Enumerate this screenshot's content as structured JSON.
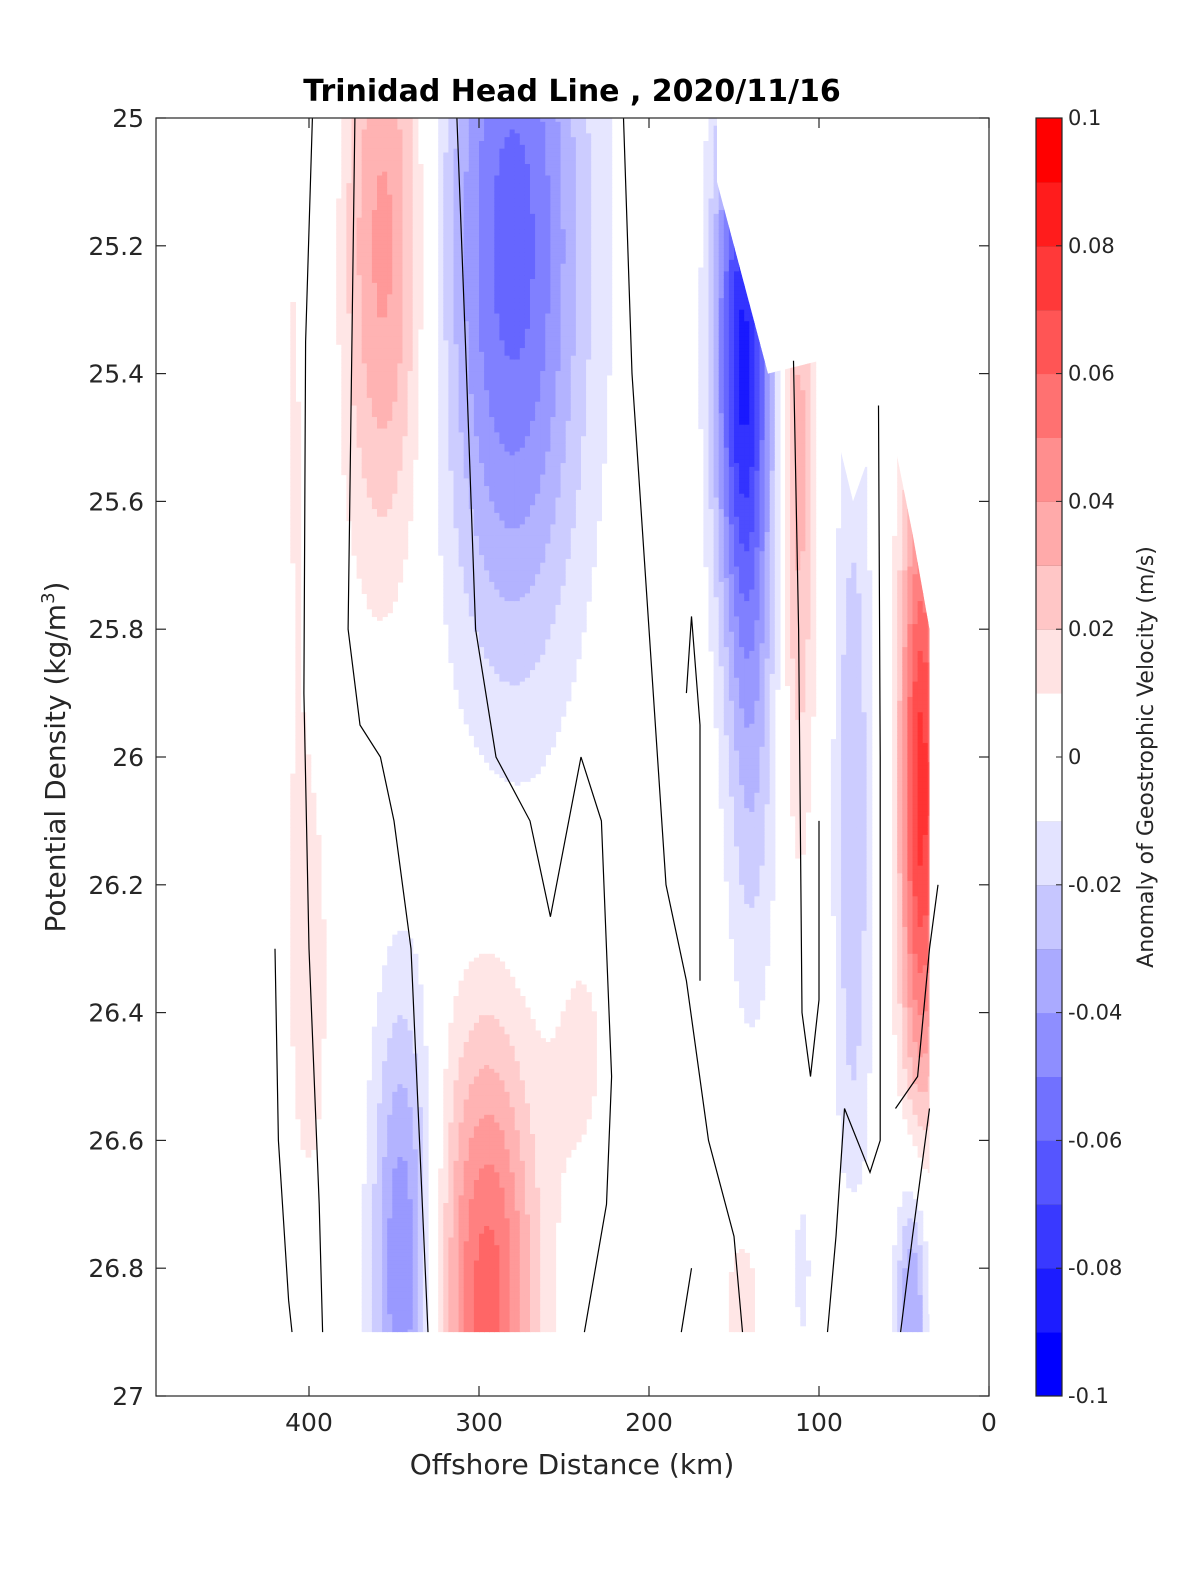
{
  "chart_data": {
    "type": "heatmap",
    "title": "Trinidad Head Line , 2020/11/16",
    "xlabel": "Offshore Distance (km)",
    "ylabel_main": "Potential Density (kg/m",
    "ylabel_sup": "3",
    "ylabel_close": ")",
    "colorbar_label": "Anomaly of Geostrophic Velocity (m/s)",
    "xlim": [
      490,
      0
    ],
    "ylim": [
      25,
      27
    ],
    "y_reversed": true,
    "x_ticks": [
      {
        "value": 400,
        "label": "400"
      },
      {
        "value": 300,
        "label": "300"
      },
      {
        "value": 200,
        "label": "200"
      },
      {
        "value": 100,
        "label": "100"
      },
      {
        "value": 0,
        "label": "0"
      }
    ],
    "y_ticks": [
      {
        "value": 25,
        "label": "25"
      },
      {
        "value": 25.2,
        "label": "25.2"
      },
      {
        "value": 25.4,
        "label": "25.4"
      },
      {
        "value": 25.6,
        "label": "25.6"
      },
      {
        "value": 25.8,
        "label": "25.8"
      },
      {
        "value": 26,
        "label": "26"
      },
      {
        "value": 26.2,
        "label": "26.2"
      },
      {
        "value": 26.4,
        "label": "26.4"
      },
      {
        "value": 26.6,
        "label": "26.6"
      },
      {
        "value": 26.8,
        "label": "26.8"
      },
      {
        "value": 27,
        "label": "27"
      }
    ],
    "colorbar": {
      "range": [
        -0.1,
        0.1
      ],
      "levels": [
        -0.1,
        -0.09,
        -0.08,
        -0.07,
        -0.06,
        -0.05,
        -0.04,
        -0.03,
        -0.02,
        -0.01,
        0,
        0.01,
        0.02,
        0.03,
        0.04,
        0.05,
        0.06,
        0.07,
        0.08,
        0.09,
        0.1
      ],
      "ticks": [
        {
          "value": 0.1,
          "label": "0.1"
        },
        {
          "value": 0.08,
          "label": "0.08"
        },
        {
          "value": 0.06,
          "label": "0.06"
        },
        {
          "value": 0.04,
          "label": "0.04"
        },
        {
          "value": 0.02,
          "label": "0.02"
        },
        {
          "value": 0,
          "label": "0"
        },
        {
          "value": -0.02,
          "label": "-0.02"
        },
        {
          "value": -0.04,
          "label": "-0.04"
        },
        {
          "value": -0.06,
          "label": "-0.06"
        },
        {
          "value": -0.08,
          "label": "-0.08"
        },
        {
          "value": -0.1,
          "label": "-0.1"
        }
      ],
      "negative_color": "#0000ff",
      "positive_color": "#ff0000",
      "zero_color": "#ffffff"
    },
    "data_extent": {
      "x": [
        420,
        35
      ],
      "y_top": 25,
      "y_bottom": 26.9,
      "valid_top_by_x": [
        [
          420,
          25
        ],
        [
          160,
          25
        ],
        [
          160,
          25.1
        ],
        [
          130,
          25.4
        ],
        [
          100,
          25.38
        ],
        [
          80,
          25.6
        ],
        [
          60,
          25.45
        ],
        [
          45,
          25.65
        ],
        [
          35,
          25.8
        ]
      ]
    },
    "velocity_features": [
      {
        "x": 408,
        "y": 25.35,
        "sx": 6,
        "sy": 0.5,
        "v": 0.012
      },
      {
        "x": 395,
        "y": 25.15,
        "sx": 8,
        "sy": 0.25,
        "v": -0.012
      },
      {
        "x": 355,
        "y": 25.2,
        "sx": 18,
        "sy": 0.35,
        "v": 0.045
      },
      {
        "x": 280,
        "y": 25.2,
        "sx": 30,
        "sy": 0.45,
        "v": -0.065
      },
      {
        "x": 145,
        "y": 25.35,
        "sx": 12,
        "sy": 0.3,
        "v": -0.085
      },
      {
        "x": 140,
        "y": 25.9,
        "sx": 11,
        "sy": 0.35,
        "v": -0.03
      },
      {
        "x": 112,
        "y": 25.55,
        "sx": 7,
        "sy": 0.4,
        "v": 0.035
      },
      {
        "x": 80,
        "y": 26.1,
        "sx": 8,
        "sy": 0.45,
        "v": -0.03
      },
      {
        "x": 40,
        "y": 26.05,
        "sx": 9,
        "sy": 0.35,
        "v": 0.085
      },
      {
        "x": 400,
        "y": 26.35,
        "sx": 10,
        "sy": 0.3,
        "v": 0.015
      },
      {
        "x": 345,
        "y": 26.8,
        "sx": 13,
        "sy": 0.3,
        "v": -0.05
      },
      {
        "x": 295,
        "y": 26.85,
        "sx": 20,
        "sy": 0.3,
        "v": 0.065
      },
      {
        "x": 240,
        "y": 26.45,
        "sx": 16,
        "sy": 0.2,
        "v": 0.012
      },
      {
        "x": 145,
        "y": 26.85,
        "sx": 10,
        "sy": 0.12,
        "v": 0.014
      },
      {
        "x": 110,
        "y": 26.8,
        "sx": 4,
        "sy": 0.1,
        "v": -0.015
      },
      {
        "x": 80,
        "y": 26.85,
        "sx": 6,
        "sy": 0.1,
        "v": 0.013
      },
      {
        "x": 45,
        "y": 26.85,
        "sx": 7,
        "sy": 0.15,
        "v": -0.045
      }
    ],
    "zero_contours": [
      [
        [
          398,
          25
        ],
        [
          402,
          25.35
        ],
        [
          403,
          25.9
        ],
        [
          400,
          26.3
        ],
        [
          394,
          26.7
        ],
        [
          392,
          26.9
        ]
      ],
      [
        [
          373,
          25
        ],
        [
          375,
          25.4
        ],
        [
          377,
          25.8
        ],
        [
          370,
          25.95
        ],
        [
          358,
          26.0
        ],
        [
          350,
          26.1
        ],
        [
          340,
          26.3
        ],
        [
          330,
          26.9
        ]
      ],
      [
        [
          313,
          25
        ],
        [
          308,
          25.35
        ],
        [
          302,
          25.8
        ],
        [
          290,
          26.0
        ],
        [
          270,
          26.1
        ],
        [
          258,
          26.25
        ],
        [
          240,
          26.0
        ],
        [
          228,
          26.1
        ],
        [
          222,
          26.5
        ],
        [
          225,
          26.7
        ],
        [
          238,
          26.9
        ]
      ],
      [
        [
          215,
          25
        ],
        [
          210,
          25.4
        ],
        [
          200,
          25.8
        ],
        [
          190,
          26.2
        ],
        [
          178,
          26.35
        ],
        [
          165,
          26.6
        ],
        [
          150,
          26.75
        ],
        [
          145,
          26.9
        ]
      ],
      [
        [
          178,
          25.9
        ],
        [
          175,
          25.78
        ],
        [
          170,
          25.95
        ],
        [
          170,
          26.35
        ]
      ],
      [
        [
          115,
          25.38
        ],
        [
          112,
          25.8
        ],
        [
          110,
          26.4
        ],
        [
          105,
          26.5
        ],
        [
          100,
          26.38
        ],
        [
          100,
          26.1
        ]
      ],
      [
        [
          65,
          25.45
        ],
        [
          64,
          26.0
        ],
        [
          64,
          26.6
        ],
        [
          70,
          26.65
        ],
        [
          85,
          26.55
        ],
        [
          90,
          26.75
        ],
        [
          95,
          26.9
        ]
      ],
      [
        [
          55,
          26.55
        ],
        [
          42,
          26.5
        ],
        [
          35,
          26.3
        ],
        [
          30,
          26.2
        ]
      ],
      [
        [
          35,
          26.55
        ],
        [
          45,
          26.75
        ],
        [
          52,
          26.9
        ]
      ],
      [
        [
          175,
          26.8
        ],
        [
          181,
          26.9
        ]
      ],
      [
        [
          420,
          26.3
        ],
        [
          418,
          26.6
        ],
        [
          412,
          26.85
        ],
        [
          410,
          26.9
        ]
      ]
    ]
  }
}
